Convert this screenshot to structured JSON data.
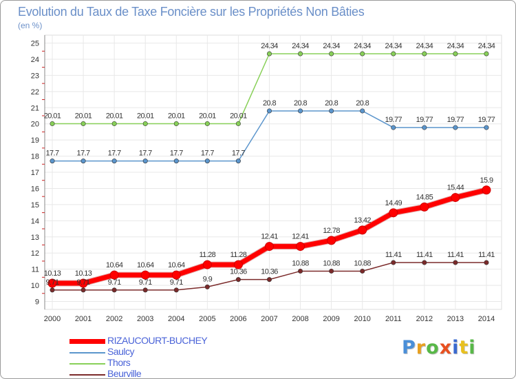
{
  "title": "Evolution du Taux de Taxe Foncière sur les Propriétés Non Bâties",
  "unit": "(en %)",
  "logo": {
    "text": "Proxiti",
    "colors": [
      "#4a8fd8",
      "#e8a020",
      "#58b848",
      "#e85020",
      "#3a6ad0",
      "#e8c020",
      "#58b848"
    ]
  },
  "chart_data": {
    "type": "line",
    "title": "Evolution du Taux de Taxe Foncière sur les Propriétés Non Bâties",
    "ylabel": "(en %)",
    "xlabel": "",
    "ylim": [
      9,
      25
    ],
    "yticks": [
      9,
      10,
      11,
      12,
      13,
      14,
      15,
      16,
      17,
      18,
      19,
      20,
      21,
      22,
      23,
      24,
      25
    ],
    "categories": [
      "2000",
      "2001",
      "2002",
      "2003",
      "2004",
      "2005",
      "2006",
      "2007",
      "2008",
      "2009",
      "2010",
      "2011",
      "2012",
      "2013",
      "2014"
    ],
    "series": [
      {
        "name": "RIZAUCOURT-BUCHEY",
        "color": "#ff0000",
        "bold": true,
        "values": [
          10.13,
          10.13,
          10.64,
          10.64,
          10.64,
          11.28,
          11.28,
          12.41,
          12.41,
          12.78,
          13.42,
          14.49,
          14.85,
          15.44,
          15.9
        ],
        "labels": [
          "10.13",
          "10.13",
          "10.64",
          "10.64",
          "10.64",
          "11.28",
          "11.28",
          "12.41",
          "12.41",
          "12.78",
          "13.42",
          "14.49",
          "14.85",
          "15.44",
          "15.9"
        ]
      },
      {
        "name": "Saulcy",
        "color": "#5b95cc",
        "bold": false,
        "values": [
          17.7,
          17.7,
          17.7,
          17.7,
          17.7,
          17.7,
          17.7,
          20.8,
          20.8,
          20.8,
          20.8,
          19.77,
          19.77,
          19.77,
          19.77
        ],
        "labels": [
          "17.7",
          "17.7",
          "17.7",
          "17.7",
          "17.7",
          "17.7",
          "17.7",
          "20.8",
          "20.8",
          "20.8",
          "20.8",
          "19.77",
          "19.77",
          "19.77",
          "19.77"
        ]
      },
      {
        "name": "Thors",
        "color": "#88d058",
        "bold": false,
        "values": [
          20.01,
          20.01,
          20.01,
          20.01,
          20.01,
          20.01,
          20.01,
          24.34,
          24.34,
          24.34,
          24.34,
          24.34,
          24.34,
          24.34,
          24.34
        ],
        "labels": [
          "20.01",
          "20.01",
          "20.01",
          "20.01",
          "20.01",
          "20.01",
          "20.01",
          "24.34",
          "24.34",
          "24.34",
          "24.34",
          "24.34",
          "24.34",
          "24.34",
          "24.34"
        ]
      },
      {
        "name": "Beurville",
        "color": "#7b2a2a",
        "bold": false,
        "values": [
          9.71,
          9.71,
          9.71,
          9.71,
          9.71,
          9.9,
          10.36,
          10.36,
          10.88,
          10.88,
          10.88,
          11.41,
          11.41,
          11.41,
          11.41
        ],
        "labels": [
          "9.71",
          "9.71",
          "9.71",
          "9.71",
          "9.71",
          "9.9",
          "10.36",
          "10.36",
          "10.88",
          "10.88",
          "10.88",
          "11.41",
          "11.41",
          "11.41",
          "11.41"
        ]
      }
    ],
    "grid": true,
    "legend_position": "bottom-left"
  }
}
